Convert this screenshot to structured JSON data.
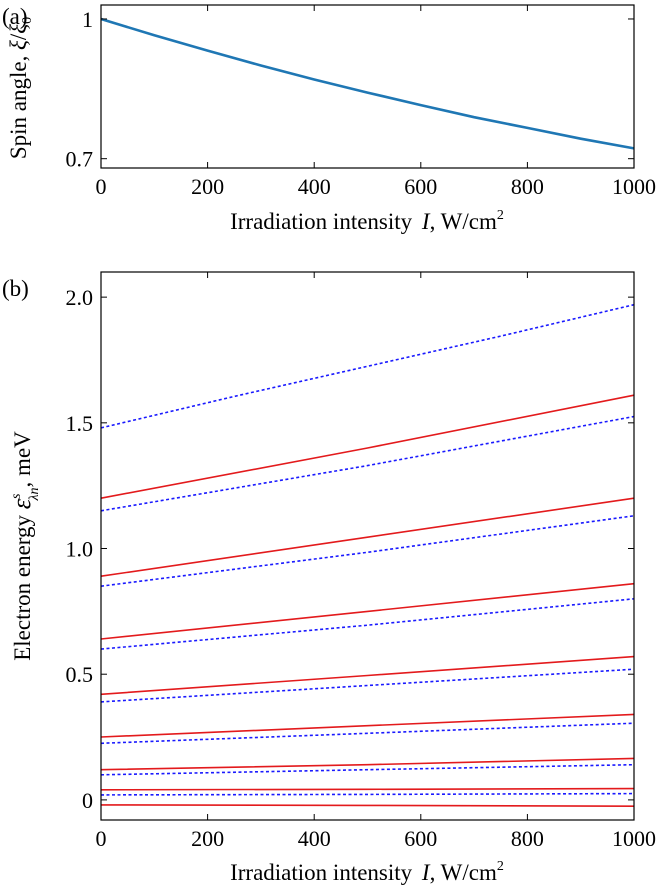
{
  "chart_data": [
    {
      "type": "line",
      "panel_label": "(a)",
      "xlabel": "Irradiation intensity  I, W/cm²",
      "xlabel_parts": {
        "pre": "Irradiation intensity ",
        "var": "I",
        "post": ", W/cm",
        "sup": "2"
      },
      "ylabel": "Spin angle, ξ/ξ₀",
      "ylabel_parts": {
        "pre": "Spin angle, ",
        "num": "ξ",
        "slash": "/",
        "den": "ξ",
        "den_sub": "0"
      },
      "xlim": [
        0,
        1000
      ],
      "ylim": [
        0.68,
        1.03
      ],
      "xticks": [
        0,
        200,
        400,
        600,
        800,
        1000
      ],
      "yticks": [
        {
          "value": 1,
          "label": "1"
        },
        {
          "value": 0.7,
          "label": "0.7"
        }
      ],
      "grid": false,
      "series": [
        {
          "color": "#1f77b4",
          "style": "solid",
          "x": [
            0,
            100,
            200,
            300,
            400,
            500,
            600,
            700,
            800,
            900,
            1000
          ],
          "y": [
            1.0,
            0.965,
            0.932,
            0.9,
            0.87,
            0.842,
            0.815,
            0.789,
            0.766,
            0.743,
            0.722
          ]
        }
      ]
    },
    {
      "type": "line",
      "panel_label": "(b)",
      "xlabel": "Irradiation intensity  I, W/cm²",
      "xlabel_parts": {
        "pre": "Irradiation intensity ",
        "var": "I",
        "post": ", W/cm",
        "sup": "2"
      },
      "ylabel": "Electron energy ε^s_λn, meV",
      "ylabel_parts": {
        "pre": "Electron energy ",
        "sym": "ε",
        "sup": "s",
        "sub": "λn",
        "post": ", meV"
      },
      "xlim": [
        0,
        1000
      ],
      "ylim": [
        -0.08,
        2.1
      ],
      "xticks": [
        0,
        200,
        400,
        600,
        800,
        1000
      ],
      "yticks": [
        {
          "value": 0,
          "label": "0"
        },
        {
          "value": 0.5,
          "label": "0.5"
        },
        {
          "value": 1.0,
          "label": "1.0"
        },
        {
          "value": 1.5,
          "label": "1.5"
        },
        {
          "value": 2.0,
          "label": "2.0"
        }
      ],
      "grid": false,
      "series": [
        {
          "color": "#e31a1c",
          "style": "solid",
          "x": [
            0,
            500,
            1000
          ],
          "y": [
            -0.02,
            -0.022,
            -0.025
          ]
        },
        {
          "color": "#e31a1c",
          "style": "solid",
          "x": [
            0,
            500,
            1000
          ],
          "y": [
            0.04,
            0.042,
            0.045
          ]
        },
        {
          "color": "#1a1aff",
          "style": "dotted",
          "x": [
            0,
            500,
            1000
          ],
          "y": [
            0.02,
            0.022,
            0.025
          ]
        },
        {
          "color": "#e31a1c",
          "style": "solid",
          "x": [
            0,
            500,
            1000
          ],
          "y": [
            0.12,
            0.14,
            0.165
          ]
        },
        {
          "color": "#1a1aff",
          "style": "dotted",
          "x": [
            0,
            500,
            1000
          ],
          "y": [
            0.1,
            0.12,
            0.14
          ]
        },
        {
          "color": "#e31a1c",
          "style": "solid",
          "x": [
            0,
            500,
            1000
          ],
          "y": [
            0.25,
            0.295,
            0.34
          ]
        },
        {
          "color": "#1a1aff",
          "style": "dotted",
          "x": [
            0,
            500,
            1000
          ],
          "y": [
            0.225,
            0.265,
            0.305
          ]
        },
        {
          "color": "#e31a1c",
          "style": "solid",
          "x": [
            0,
            500,
            1000
          ],
          "y": [
            0.42,
            0.495,
            0.57
          ]
        },
        {
          "color": "#1a1aff",
          "style": "dotted",
          "x": [
            0,
            500,
            1000
          ],
          "y": [
            0.39,
            0.455,
            0.52
          ]
        },
        {
          "color": "#e31a1c",
          "style": "solid",
          "x": [
            0,
            500,
            1000
          ],
          "y": [
            0.64,
            0.75,
            0.86
          ]
        },
        {
          "color": "#1a1aff",
          "style": "dotted",
          "x": [
            0,
            500,
            1000
          ],
          "y": [
            0.6,
            0.695,
            0.8
          ]
        },
        {
          "color": "#e31a1c",
          "style": "solid",
          "x": [
            0,
            500,
            1000
          ],
          "y": [
            0.89,
            1.045,
            1.2
          ]
        },
        {
          "color": "#1a1aff",
          "style": "dotted",
          "x": [
            0,
            500,
            1000
          ],
          "y": [
            0.85,
            0.985,
            1.13
          ]
        },
        {
          "color": "#e31a1c",
          "style": "solid",
          "x": [
            0,
            500,
            1000
          ],
          "y": [
            1.2,
            1.4,
            1.61
          ]
        },
        {
          "color": "#1a1aff",
          "style": "dotted",
          "x": [
            0,
            500,
            1000
          ],
          "y": [
            1.15,
            1.33,
            1.525
          ]
        },
        {
          "color": "#1a1aff",
          "style": "dotted",
          "x": [
            0,
            250,
            500,
            750,
            1000
          ],
          "y": [
            1.48,
            1.605,
            1.725,
            1.845,
            1.97
          ]
        }
      ]
    }
  ]
}
